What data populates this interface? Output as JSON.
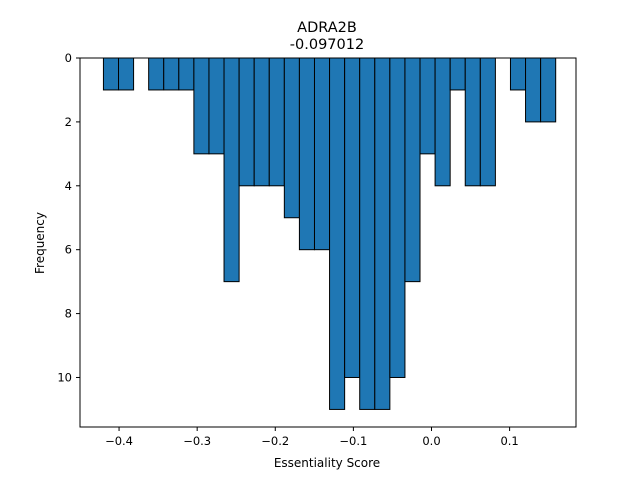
{
  "chart_data": {
    "type": "bar",
    "title": "ADRA2B",
    "subtitle": "-0.097012",
    "xlabel": "Essentiality Score",
    "ylabel": "Frequency",
    "y_inverted": true,
    "xlim": [
      -0.45,
      0.185
    ],
    "ylim": [
      0,
      11.55
    ],
    "xticks": [
      -0.4,
      -0.3,
      -0.2,
      -0.1,
      0.0,
      0.1
    ],
    "xtick_labels": [
      "−0.4",
      "−0.3",
      "−0.2",
      "−0.1",
      "0.0",
      "0.1"
    ],
    "yticks": [
      0,
      2,
      4,
      6,
      8,
      10
    ],
    "ytick_labels": [
      "0",
      "2",
      "4",
      "6",
      "8",
      "10"
    ],
    "bin_start": -0.42,
    "bin_width": 0.0193,
    "values": [
      1,
      1,
      0,
      1,
      1,
      1,
      3,
      3,
      7,
      4,
      4,
      4,
      5,
      6,
      6,
      11,
      10,
      11,
      11,
      10,
      7,
      3,
      4,
      1,
      4,
      4,
      0,
      1,
      2,
      2
    ],
    "bar_color": "#1f77b4",
    "edge_color": "#000000",
    "grid": false
  }
}
